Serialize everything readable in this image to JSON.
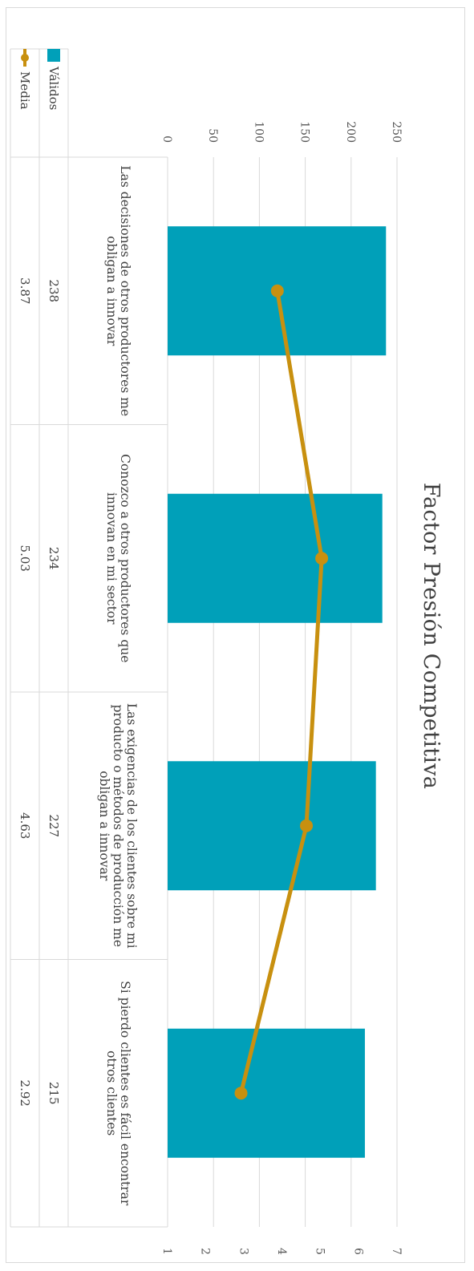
{
  "chart_data": {
    "type": "bar",
    "title": "Factor Presión Competitiva",
    "categories": [
      "Las decisiones de otros productores me obligan a innovar",
      "Conozco a otros productores que innovan en mi sector",
      "Las exigencias de los clientes sobre mi producto o métodos de producción me obligan a innovar",
      "Si pierdo clientes es fácil encontrar otros clientes"
    ],
    "series": [
      {
        "name": "Válidos",
        "type": "bar",
        "axis": "primary",
        "color": "#00a0b9",
        "values": [
          238,
          234,
          227,
          215
        ]
      },
      {
        "name": "Media",
        "type": "line",
        "axis": "secondary",
        "color": "#c8900f",
        "values": [
          3.87,
          5.03,
          4.63,
          2.92
        ]
      }
    ],
    "primary_axis": {
      "ticks": [
        "0",
        "50",
        "100",
        "150",
        "200",
        "250"
      ],
      "ylim": [
        0,
        250
      ]
    },
    "secondary_axis": {
      "ticks": [
        "1",
        "2",
        "3",
        "4",
        "5",
        "6",
        "7"
      ],
      "ylim": [
        1,
        7
      ]
    },
    "data_table": {
      "rows": [
        {
          "name": "Válidos",
          "values": [
            "238",
            "234",
            "227",
            "215"
          ]
        },
        {
          "name": "Media",
          "values": [
            "3.87",
            "5.03",
            "4.63",
            "2.92"
          ]
        }
      ]
    },
    "grid": true,
    "legend": "data-table"
  }
}
